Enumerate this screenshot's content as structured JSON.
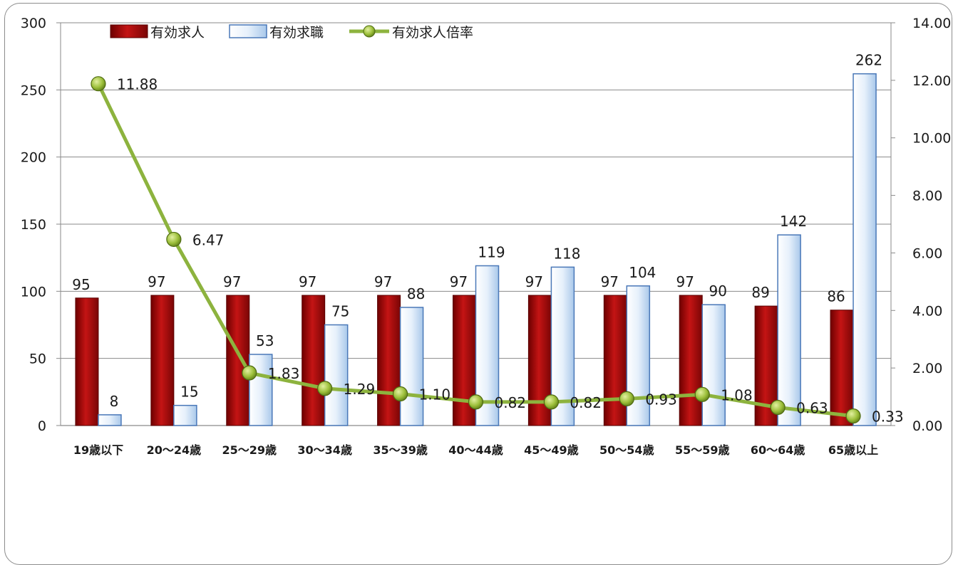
{
  "chart_data": {
    "type": "bar",
    "categories": [
      "19歳以下",
      "20～24歳",
      "25～29歳",
      "30～34歳",
      "35～39歳",
      "40～44歳",
      "45～49歳",
      "50～54歳",
      "55～59歳",
      "60～64歳",
      "65歳以上"
    ],
    "series": [
      {
        "name": "有効求人",
        "type": "bar",
        "axis": "left",
        "color": "#b01010",
        "values": [
          95,
          97,
          97,
          97,
          97,
          97,
          97,
          97,
          97,
          89,
          86
        ]
      },
      {
        "name": "有効求職",
        "type": "bar",
        "axis": "left",
        "color": "#cfe1f5",
        "values": [
          8,
          15,
          53,
          75,
          88,
          119,
          118,
          104,
          90,
          142,
          262
        ]
      },
      {
        "name": "有効求人倍率",
        "type": "line",
        "axis": "right",
        "color": "#8db33e",
        "values": [
          11.88,
          6.47,
          1.83,
          1.29,
          1.1,
          0.82,
          0.82,
          0.93,
          1.08,
          0.63,
          0.33
        ],
        "labels": [
          "11.88",
          "6.47",
          "1.83",
          "1.29",
          "1.10",
          "0.82",
          "0.82",
          "0.93",
          "1.08",
          "0.63",
          "0.33"
        ]
      }
    ],
    "y_left": {
      "min": 0,
      "max": 300,
      "ticks": [
        "0",
        "50",
        "100",
        "150",
        "200",
        "250",
        "300"
      ]
    },
    "y_right": {
      "min": 0,
      "max": 14,
      "ticks": [
        "0.00",
        "2.00",
        "4.00",
        "6.00",
        "8.00",
        "10.00",
        "12.00",
        "14.00"
      ]
    },
    "grid": true,
    "legend": "top-left"
  }
}
